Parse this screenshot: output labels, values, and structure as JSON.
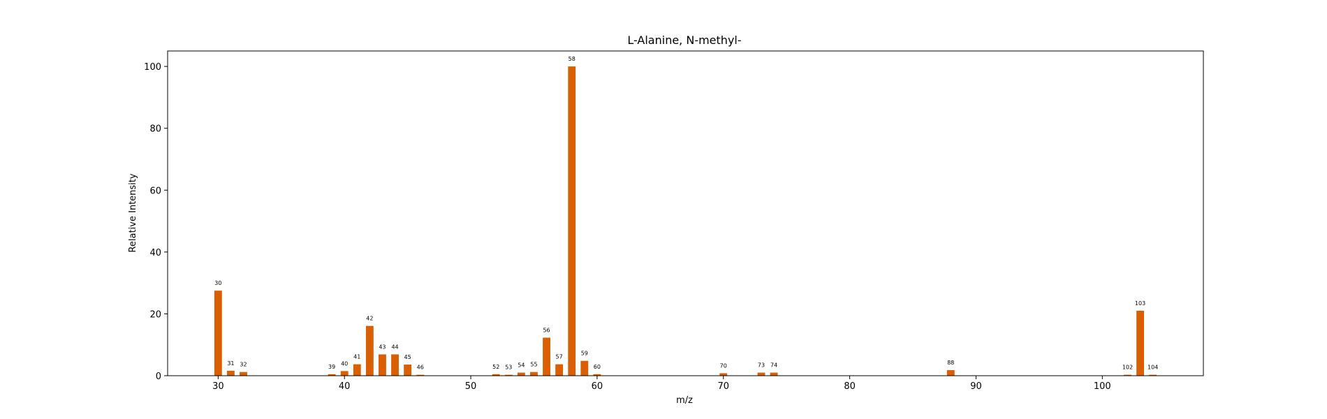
{
  "chart_data": {
    "type": "bar",
    "title": "L-Alanine, N-methyl-",
    "xlabel": "m/z",
    "ylabel": "Relative Intensity",
    "xlim": [
      26,
      108
    ],
    "ylim": [
      0,
      105
    ],
    "xticks": [
      30,
      40,
      50,
      60,
      70,
      80,
      90,
      100
    ],
    "yticks": [
      0,
      20,
      40,
      60,
      80,
      100
    ],
    "bar_color": "#d95f02",
    "grid": false,
    "x": [
      30,
      31,
      32,
      39,
      40,
      41,
      42,
      43,
      44,
      45,
      46,
      52,
      53,
      54,
      55,
      56,
      57,
      58,
      59,
      60,
      70,
      73,
      74,
      88,
      102,
      103,
      104
    ],
    "values": [
      27.5,
      1.6,
      1.2,
      0.5,
      1.5,
      3.7,
      16.1,
      6.9,
      6.9,
      3.6,
      0.3,
      0.5,
      0.3,
      1.0,
      1.2,
      12.3,
      3.7,
      100,
      4.8,
      0.5,
      0.8,
      1.0,
      1.0,
      1.8,
      0.3,
      21.0,
      0.3
    ],
    "labels": [
      "30",
      "31",
      "32",
      "39",
      "40",
      "41",
      "42",
      "43",
      "44",
      "45",
      "46",
      "52",
      "53",
      "54",
      "55",
      "56",
      "57",
      "58",
      "59",
      "60",
      "70",
      "73",
      "74",
      "88",
      "102",
      "103",
      "104"
    ]
  }
}
